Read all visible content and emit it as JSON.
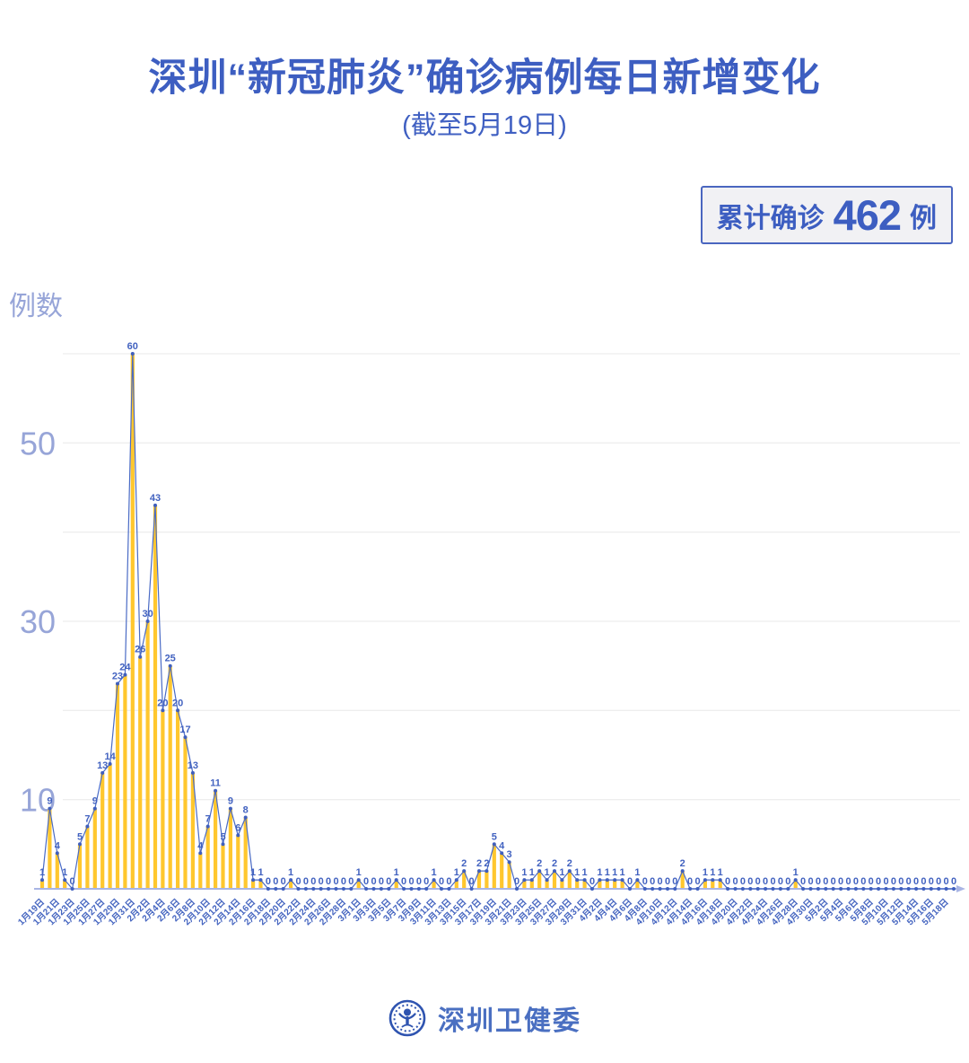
{
  "badge": {
    "prefix": "累计确诊",
    "value": "462",
    "suffix": "例"
  },
  "footer": {
    "label": "深圳卫健委"
  },
  "chart_data": {
    "type": "bar",
    "title": "深圳“新冠肺炎”确诊病例每日新增变化",
    "subtitle": "(截至5月19日)",
    "ylabel": "例数",
    "xlabel": "",
    "ylim": [
      0,
      60
    ],
    "yticks_labeled": [
      10,
      30,
      50
    ],
    "gridlines": [
      10,
      20,
      30,
      40,
      50,
      60
    ],
    "x_label_every": 2,
    "legend": "none",
    "series_note": "yellow bars with blue connecting line, point markers and value labels",
    "cumulative_total": 462,
    "categories": [
      "1月19日",
      "1月20日",
      "1月21日",
      "1月22日",
      "1月23日",
      "1月24日",
      "1月25日",
      "1月26日",
      "1月27日",
      "1月28日",
      "1月29日",
      "1月30日",
      "1月31日",
      "2月1日",
      "2月2日",
      "2月3日",
      "2月4日",
      "2月5日",
      "2月6日",
      "2月7日",
      "2月8日",
      "2月9日",
      "2月10日",
      "2月11日",
      "2月12日",
      "2月13日",
      "2月14日",
      "2月15日",
      "2月16日",
      "2月17日",
      "2月18日",
      "2月19日",
      "2月20日",
      "2月21日",
      "2月22日",
      "2月23日",
      "2月24日",
      "2月25日",
      "2月26日",
      "2月27日",
      "2月28日",
      "2月29日",
      "3月1日",
      "3月2日",
      "3月3日",
      "3月4日",
      "3月5日",
      "3月6日",
      "3月7日",
      "3月8日",
      "3月9日",
      "3月10日",
      "3月11日",
      "3月12日",
      "3月13日",
      "3月14日",
      "3月15日",
      "3月16日",
      "3月17日",
      "3月18日",
      "3月19日",
      "3月20日",
      "3月21日",
      "3月22日",
      "3月23日",
      "3月24日",
      "3月25日",
      "3月26日",
      "3月27日",
      "3月28日",
      "3月29日",
      "3月30日",
      "3月31日",
      "4月1日",
      "4月2日",
      "4月3日",
      "4月4日",
      "4月5日",
      "4月6日",
      "4月7日",
      "4月8日",
      "4月9日",
      "4月10日",
      "4月11日",
      "4月12日",
      "4月13日",
      "4月14日",
      "4月15日",
      "4月16日",
      "4月17日",
      "4月18日",
      "4月19日",
      "4月20日",
      "4月21日",
      "4月22日",
      "4月23日",
      "4月24日",
      "4月25日",
      "4月26日",
      "4月27日",
      "4月28日",
      "4月29日",
      "4月30日",
      "5月1日",
      "5月2日",
      "5月3日",
      "5月4日",
      "5月5日",
      "5月6日",
      "5月7日",
      "5月8日",
      "5月9日",
      "5月10日",
      "5月11日",
      "5月12日",
      "5月13日",
      "5月14日",
      "5月15日",
      "5月16日",
      "5月17日",
      "5月18日",
      "5月19日"
    ],
    "values": [
      1,
      9,
      4,
      1,
      0,
      5,
      7,
      9,
      13,
      14,
      23,
      24,
      60,
      26,
      30,
      43,
      20,
      25,
      20,
      17,
      13,
      4,
      7,
      11,
      5,
      9,
      6,
      8,
      1,
      1,
      0,
      0,
      0,
      1,
      0,
      0,
      0,
      0,
      0,
      0,
      0,
      0,
      1,
      0,
      0,
      0,
      0,
      1,
      0,
      0,
      0,
      0,
      1,
      0,
      0,
      1,
      2,
      0,
      2,
      2,
      5,
      4,
      3,
      0,
      1,
      1,
      2,
      1,
      2,
      1,
      2,
      1,
      1,
      0,
      1,
      1,
      1,
      1,
      0,
      1,
      0,
      0,
      0,
      0,
      0,
      2,
      0,
      0,
      1,
      1,
      1,
      0,
      0,
      0,
      0,
      0,
      0,
      0,
      0,
      0,
      1,
      0,
      0,
      0,
      0,
      0,
      0,
      0,
      0,
      0,
      0,
      0,
      0,
      0,
      0,
      0,
      0,
      0,
      0,
      0,
      0,
      0
    ],
    "colors": {
      "bar": "#FFC72E",
      "line": "#4a6bc5",
      "point": "#3f5fbe",
      "value_label": "#4262c0",
      "axis": "#a9b5e4",
      "grid": "#e8e8e8",
      "ytick": "#97a5d8",
      "xtick": "#4565c0"
    }
  }
}
